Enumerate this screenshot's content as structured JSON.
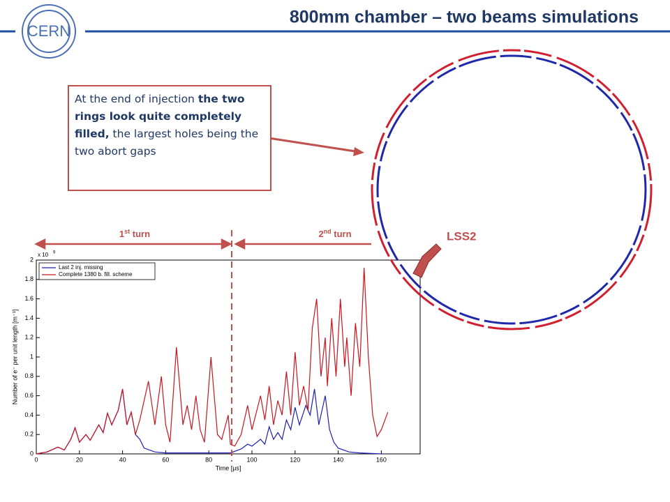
{
  "slide": {
    "title": "800mm chamber – two beams simulations",
    "logo": "CERN",
    "box": [
      {
        "text": "At the end of injection ",
        "bold": false
      },
      {
        "text": "the two rings look quite completely filled,",
        "bold": true
      },
      {
        "text": " the largest holes being the two abort gaps",
        "bold": false
      }
    ],
    "first_turn": [
      "1",
      "st",
      " turn"
    ],
    "second_turn": [
      "2",
      "nd",
      " turn"
    ],
    "marker": "LSS2"
  },
  "chart_data": {
    "type": "line",
    "xlabel": "Time [µs]",
    "ylabel": "Number of e⁻ per unit length [m⁻¹]",
    "y_multiplier": "x 10",
    "y_exponent": "9",
    "xlim": [
      0,
      178
    ],
    "ylim": [
      0,
      2
    ],
    "xticks": [
      0,
      20,
      40,
      60,
      80,
      100,
      120,
      140,
      160
    ],
    "yticks": [
      0,
      0.2,
      0.4,
      0.6,
      0.8,
      1,
      1.2,
      1.4,
      1.6,
      1.8,
      2
    ],
    "legend": "upper left",
    "series": [
      {
        "name": "Last 2 inj. missing",
        "color": "#1f1fb4",
        "x": [
          0,
          5,
          10,
          13,
          16,
          18,
          20,
          23,
          25,
          29,
          31,
          33,
          35,
          38,
          40,
          42,
          44,
          46,
          48,
          50,
          55,
          60,
          70,
          80,
          90,
          95,
          98,
          100,
          104,
          106,
          108,
          110,
          112,
          114,
          116,
          118,
          120,
          122,
          125,
          127,
          129,
          131,
          134,
          136,
          138,
          140,
          145,
          150,
          160
        ],
        "values": [
          0,
          0.02,
          0.07,
          0.04,
          0.15,
          0.27,
          0.12,
          0.2,
          0.14,
          0.3,
          0.22,
          0.42,
          0.3,
          0.45,
          0.67,
          0.3,
          0.43,
          0.2,
          0.15,
          0.06,
          0.02,
          0.01,
          0.01,
          0.01,
          0.01,
          0.05,
          0.1,
          0.08,
          0.15,
          0.1,
          0.28,
          0.15,
          0.22,
          0.15,
          0.35,
          0.25,
          0.48,
          0.3,
          0.5,
          0.4,
          0.67,
          0.3,
          0.6,
          0.25,
          0.12,
          0.06,
          0.02,
          0.01,
          0
        ]
      },
      {
        "name": "Complete 1380 b. fill. scheme",
        "color": "#c8141e",
        "x": [
          0,
          5,
          10,
          13,
          16,
          18,
          20,
          23,
          25,
          29,
          31,
          33,
          35,
          38,
          40,
          42,
          44,
          46,
          48,
          52,
          55,
          58,
          60,
          62,
          65,
          68,
          70,
          72,
          74,
          76,
          78,
          81,
          84,
          86,
          89,
          90,
          92,
          95,
          98,
          100,
          104,
          106,
          108,
          110,
          112,
          114,
          116,
          118,
          120,
          122,
          124,
          126,
          128,
          130,
          132,
          134,
          135,
          137,
          139,
          141,
          143,
          144,
          146,
          148,
          150,
          152,
          154,
          156,
          158,
          160,
          163
        ],
        "values": [
          0,
          0.02,
          0.07,
          0.04,
          0.15,
          0.27,
          0.12,
          0.2,
          0.14,
          0.3,
          0.22,
          0.42,
          0.3,
          0.45,
          0.67,
          0.3,
          0.43,
          0.2,
          0.35,
          0.75,
          0.3,
          0.8,
          0.3,
          0.12,
          1.1,
          0.3,
          0.5,
          0.25,
          0.6,
          0.25,
          0.12,
          1.0,
          0.2,
          0.15,
          0.4,
          0.1,
          0.08,
          0.2,
          0.5,
          0.25,
          0.6,
          0.35,
          0.7,
          0.3,
          0.55,
          0.4,
          0.85,
          0.4,
          1.05,
          0.5,
          0.7,
          0.45,
          1.3,
          1.6,
          0.8,
          1.2,
          0.7,
          1.4,
          0.8,
          1.6,
          0.9,
          1.2,
          0.6,
          1.35,
          0.9,
          1.92,
          1.0,
          0.4,
          0.18,
          0.25,
          0.43
        ]
      }
    ]
  }
}
